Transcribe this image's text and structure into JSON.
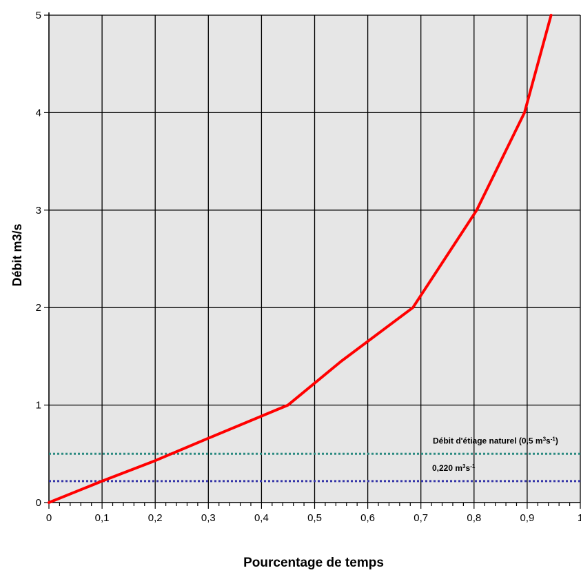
{
  "chart_data": {
    "type": "line",
    "title": "",
    "xlabel": "Pourcentage de temps",
    "ylabel": "Débit m3/s",
    "xlim": [
      0,
      1
    ],
    "ylim": [
      0,
      5
    ],
    "x_ticks": [
      0,
      0.1,
      0.2,
      0.3,
      0.4,
      0.5,
      0.6,
      0.7,
      0.8,
      0.9,
      1
    ],
    "x_tick_labels": [
      "0",
      "0,1",
      "0,2",
      "0,3",
      "0,4",
      "0,5",
      "0,6",
      "0,7",
      "0,8",
      "0,9",
      "1"
    ],
    "y_ticks": [
      0,
      1,
      2,
      3,
      4,
      5
    ],
    "y_tick_labels": [
      "0",
      "1",
      "2",
      "3",
      "4",
      "5"
    ],
    "grid": true,
    "plot_background": "#e6e6e6",
    "series": [
      {
        "color": "#ff0000",
        "x": [
          0,
          0.1,
          0.2,
          0.3,
          0.45,
          0.55,
          0.685,
          0.805,
          0.895,
          0.945
        ],
        "y": [
          0,
          0.22,
          0.43,
          0.66,
          1.0,
          1.45,
          2.0,
          3.0,
          4.0,
          5.0
        ]
      }
    ],
    "reference_lines": [
      {
        "y": 0.5,
        "color": "#2a8a80",
        "style": "dotted",
        "label_main": "Débit d'ét",
        "label_tail": "iage naturel (0,5 m",
        "sup1": "3",
        "mid": "s",
        "sup2": "-1",
        "end": ")"
      },
      {
        "y": 0.22,
        "color": "#3535a8",
        "style": "dotted",
        "label_main": "0,220 m",
        "sup1": "3",
        "mid": "s",
        "sup2": "-1"
      }
    ]
  }
}
